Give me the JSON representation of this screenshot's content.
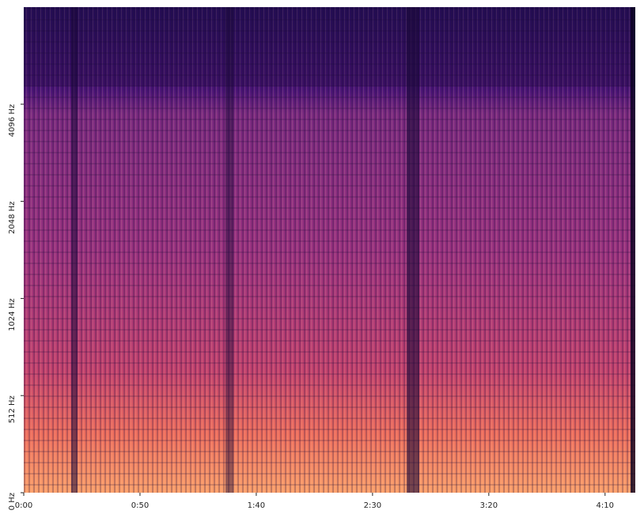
{
  "chart_data": {
    "type": "spectrogram",
    "xlim": [
      0,
      263
    ],
    "ylim": [
      0,
      8192
    ],
    "yscale": "log",
    "xticks": [
      {
        "value": 0,
        "label": "0:00"
      },
      {
        "value": 50,
        "label": "0:50"
      },
      {
        "value": 100,
        "label": "1:40"
      },
      {
        "value": 150,
        "label": "2:30"
      },
      {
        "value": 200,
        "label": "3:20"
      },
      {
        "value": 250,
        "label": "4:10"
      }
    ],
    "yticks": [
      {
        "value": 0,
        "label": "0 Hz"
      },
      {
        "value": 512,
        "label": "512 Hz"
      },
      {
        "value": 1024,
        "label": "1024 Hz"
      },
      {
        "value": 2048,
        "label": "2048 Hz"
      },
      {
        "value": 4096,
        "label": "4096 Hz"
      }
    ]
  }
}
